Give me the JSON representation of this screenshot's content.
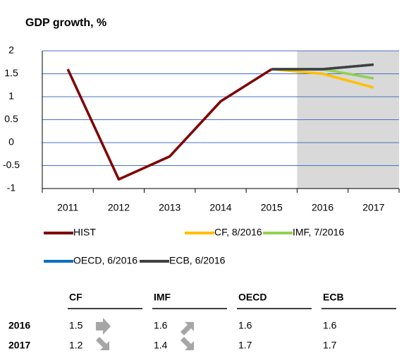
{
  "chart_data": {
    "type": "line",
    "title": "GDP growth, %",
    "categories": [
      "2011",
      "2012",
      "2013",
      "2014",
      "2015",
      "2016",
      "2017"
    ],
    "series": [
      {
        "name": "HIST",
        "color": "#800000",
        "values": [
          1.6,
          -0.8,
          -0.3,
          0.9,
          1.6,
          null,
          null
        ]
      },
      {
        "name": "CF, 8/2016",
        "color": "#ffc000",
        "values": [
          null,
          null,
          null,
          null,
          1.6,
          1.5,
          1.2
        ]
      },
      {
        "name": "IMF, 7/2016",
        "color": "#92d050",
        "values": [
          null,
          null,
          null,
          null,
          1.6,
          1.6,
          1.4
        ]
      },
      {
        "name": "OECD, 6/2016",
        "color": "#0070c0",
        "values": [
          null,
          null,
          null,
          null,
          1.6,
          1.6,
          1.7
        ]
      },
      {
        "name": "ECB, 6/2016",
        "color": "#404040",
        "values": [
          null,
          null,
          null,
          null,
          1.6,
          1.6,
          1.7
        ]
      }
    ],
    "ylim": [
      -1,
      2
    ],
    "yticks": [
      -1,
      -0.5,
      0,
      0.5,
      1,
      1.5,
      2
    ],
    "grid": true
  },
  "table": {
    "header": [
      "CF",
      "IMF",
      "OECD",
      "ECB"
    ],
    "rows": [
      [
        "2016",
        1.5,
        1.6,
        1.6,
        1.6
      ],
      [
        "2017",
        1.2,
        1.4,
        1.7,
        1.7
      ]
    ]
  }
}
